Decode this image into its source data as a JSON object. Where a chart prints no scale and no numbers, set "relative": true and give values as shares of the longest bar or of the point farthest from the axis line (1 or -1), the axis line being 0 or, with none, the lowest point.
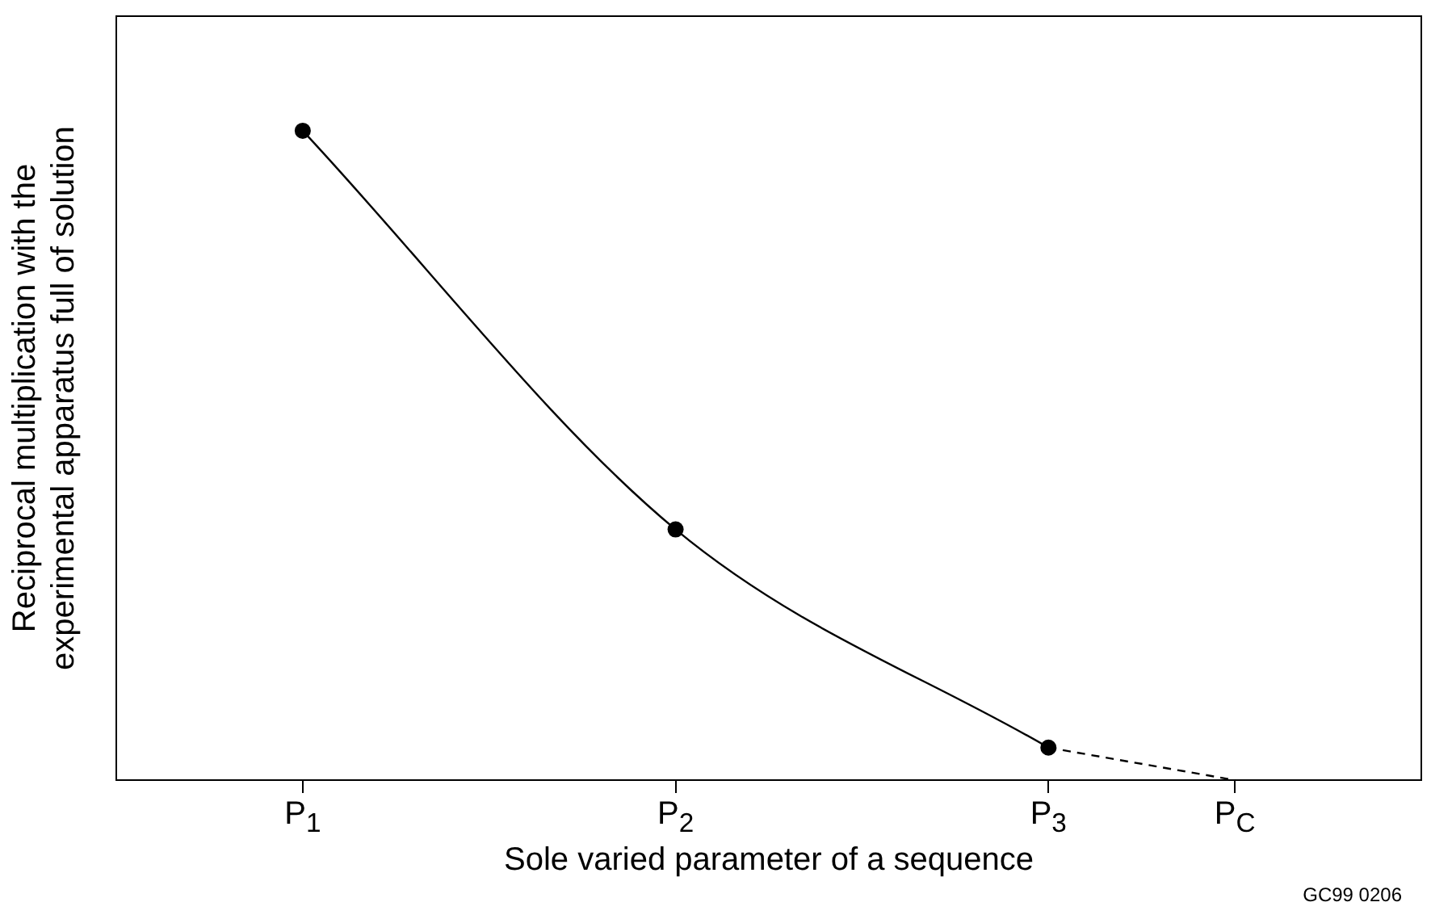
{
  "chart_data": {
    "type": "line",
    "relative": true,
    "xlabel": "Sole varied parameter of a sequence",
    "ylabel": "Reciprocal multiplication with the experimental apparatus full of solution",
    "xlim": [
      0.5,
      4
    ],
    "xticks": [
      {
        "value": 1,
        "label": "P$_{1}$"
      },
      {
        "value": 2,
        "label": "P$_{2}$"
      },
      {
        "value": 3,
        "label": "P$_{3}$"
      },
      {
        "value": 3.5,
        "label": "P$_{C}$"
      }
    ],
    "series": [
      {
        "color": "#000000",
        "x": [
          1,
          2,
          3
        ],
        "values": [
          1,
          0.386,
          0.05
        ],
        "marker": "circle",
        "line_style": "solid"
      },
      {
        "color": "#000000",
        "x": [
          3,
          3.5
        ],
        "values": [
          0.05,
          0
        ],
        "marker": "none",
        "line_style": "dashed"
      }
    ],
    "annotations": [
      "GC99 0206"
    ],
    "legend": false,
    "grid": false
  }
}
